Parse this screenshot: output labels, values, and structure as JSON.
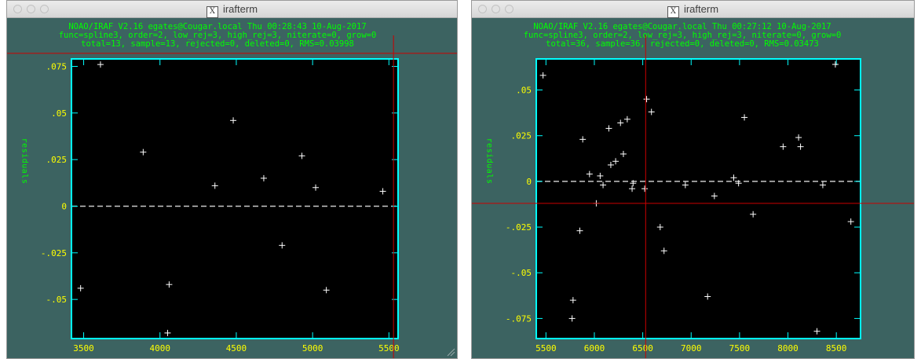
{
  "windows": [
    {
      "title": "irafterm",
      "header_lines": [
        "NOAO/IRAF V2.16 egates@Cougar.local Thu 00:28:43 10-Aug-2017",
        "func=spline3, order=2, low_rej=3, high_rej=3, niterate=0, grow=0",
        "total=13, sample=13, rejected=0, deleted=0, RMS=0.03998"
      ]
    },
    {
      "title": "irafterm",
      "header_lines": [
        "NOAO/IRAF V2.16 egates@Cougar.local Thu 00:27:12 10-Aug-2017",
        "func=spline3, order=2, low_rej=3, high_rej=3, niterate=0, grow=0",
        "total=36, sample=36, rejected=0, deleted=0, RMS=0.03473"
      ]
    }
  ],
  "colors": {
    "window_bg": "#3c6361",
    "plot_bg": "#000000",
    "frame": "#00ffff",
    "header_text": "#00ff00",
    "tick_labels": "#ffff00",
    "ylabel": "#00ff00",
    "points": "#ffffff",
    "zero_line": "#c8c8c8",
    "crosshair": "#cc0000"
  },
  "chart_data": [
    {
      "type": "scatter",
      "ylabel": "residuals",
      "xlim": [
        3420,
        5560
      ],
      "ylim": [
        -0.071,
        0.079
      ],
      "xticks": [
        3500,
        4000,
        4500,
        5000,
        5500
      ],
      "yticks": [
        {
          "v": 0.075,
          "label": ".075"
        },
        {
          "v": 0.05,
          "label": ".05"
        },
        {
          "v": 0.025,
          "label": ".025"
        },
        {
          "v": 0,
          "label": "0"
        },
        {
          "v": -0.025,
          "label": "-.025"
        },
        {
          "v": -0.05,
          "label": "-.05"
        }
      ],
      "zero_line": 0,
      "crosshair": {
        "x": 5530,
        "y": 0.082
      },
      "points": [
        {
          "x": 3480,
          "y": -0.044
        },
        {
          "x": 3610,
          "y": 0.076
        },
        {
          "x": 3890,
          "y": 0.029
        },
        {
          "x": 4060,
          "y": -0.042
        },
        {
          "x": 4050,
          "y": -0.068
        },
        {
          "x": 4360,
          "y": 0.011
        },
        {
          "x": 4480,
          "y": 0.046
        },
        {
          "x": 4680,
          "y": 0.015
        },
        {
          "x": 4800,
          "y": -0.021
        },
        {
          "x": 4930,
          "y": 0.027
        },
        {
          "x": 5020,
          "y": 0.01
        },
        {
          "x": 5090,
          "y": -0.045
        },
        {
          "x": 5460,
          "y": 0.008
        }
      ]
    },
    {
      "type": "scatter",
      "ylabel": "residuals",
      "xlim": [
        5400,
        8750
      ],
      "ylim": [
        -0.086,
        0.067
      ],
      "xticks": [
        5500,
        6000,
        6500,
        7000,
        7500,
        8000,
        8500
      ],
      "yticks": [
        {
          "v": 0.05,
          "label": ".05"
        },
        {
          "v": 0.025,
          "label": ".025"
        },
        {
          "v": 0,
          "label": "0"
        },
        {
          "v": -0.025,
          "label": "-.025"
        },
        {
          "v": -0.05,
          "label": "-.05"
        },
        {
          "v": -0.075,
          "label": "-.075"
        }
      ],
      "zero_line": 0,
      "crosshair": {
        "x": 6530,
        "y": -0.012
      },
      "points": [
        {
          "x": 5470,
          "y": 0.058
        },
        {
          "x": 5780,
          "y": -0.065
        },
        {
          "x": 5770,
          "y": -0.075
        },
        {
          "x": 5850,
          "y": -0.027
        },
        {
          "x": 5880,
          "y": 0.023
        },
        {
          "x": 5950,
          "y": 0.004
        },
        {
          "x": 6020,
          "y": -0.012
        },
        {
          "x": 6060,
          "y": 0.003
        },
        {
          "x": 6090,
          "y": -0.002
        },
        {
          "x": 6150,
          "y": 0.029
        },
        {
          "x": 6170,
          "y": 0.009
        },
        {
          "x": 6220,
          "y": 0.011
        },
        {
          "x": 6270,
          "y": 0.032
        },
        {
          "x": 6300,
          "y": 0.015
        },
        {
          "x": 6340,
          "y": 0.034
        },
        {
          "x": 6390,
          "y": -0.004
        },
        {
          "x": 6400,
          "y": -0.001
        },
        {
          "x": 6520,
          "y": -0.004
        },
        {
          "x": 6540,
          "y": 0.045
        },
        {
          "x": 6590,
          "y": 0.038
        },
        {
          "x": 6680,
          "y": -0.025
        },
        {
          "x": 6720,
          "y": -0.038
        },
        {
          "x": 6940,
          "y": -0.002
        },
        {
          "x": 7170,
          "y": -0.063
        },
        {
          "x": 7240,
          "y": -0.008
        },
        {
          "x": 7440,
          "y": 0.002
        },
        {
          "x": 7490,
          "y": -0.001
        },
        {
          "x": 7550,
          "y": 0.035
        },
        {
          "x": 7640,
          "y": -0.018
        },
        {
          "x": 7950,
          "y": 0.019
        },
        {
          "x": 8110,
          "y": 0.024
        },
        {
          "x": 8130,
          "y": 0.019
        },
        {
          "x": 8300,
          "y": -0.082
        },
        {
          "x": 8360,
          "y": -0.002
        },
        {
          "x": 8490,
          "y": 0.064
        },
        {
          "x": 8650,
          "y": -0.022
        }
      ]
    }
  ]
}
